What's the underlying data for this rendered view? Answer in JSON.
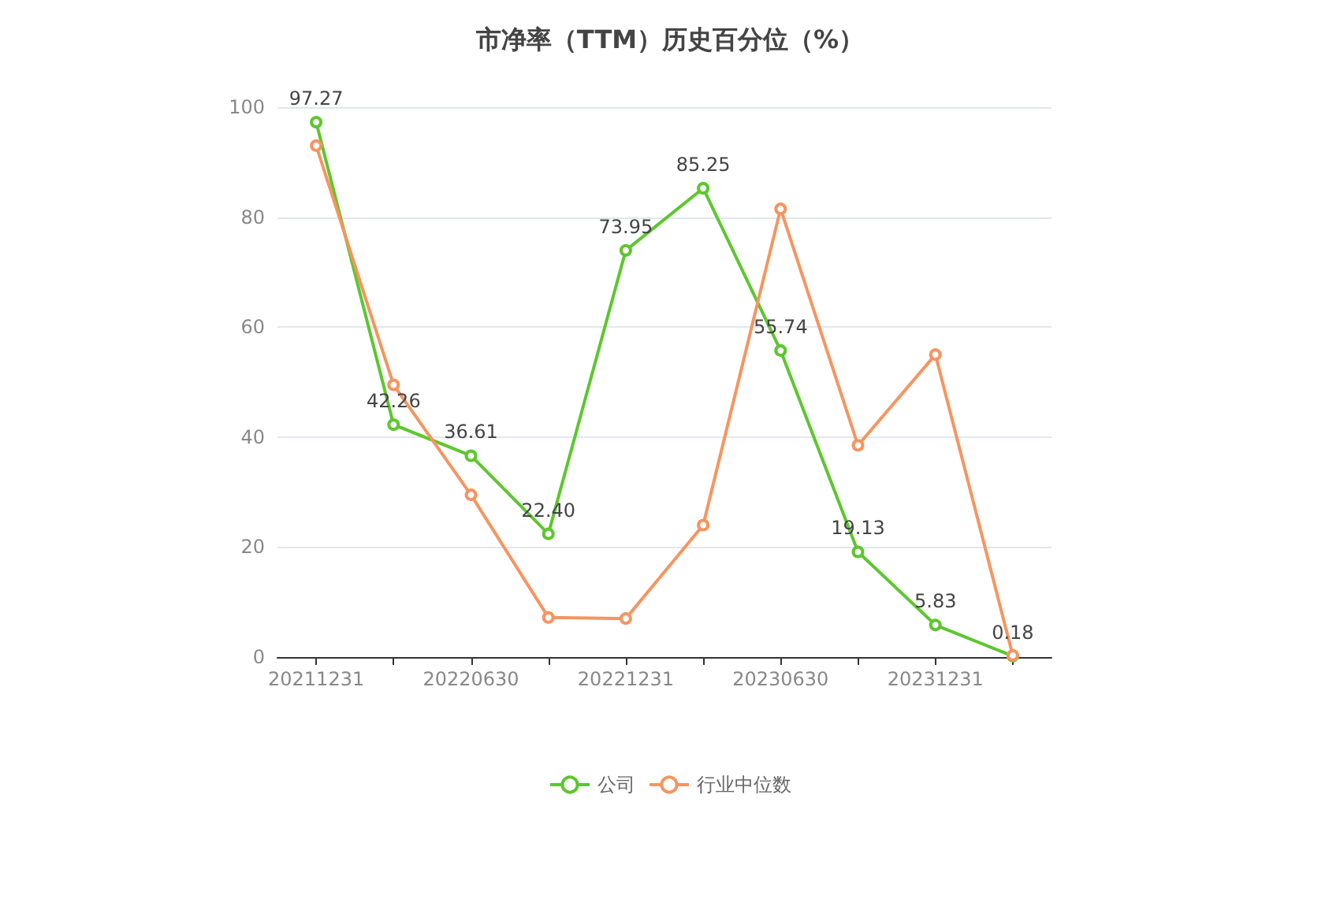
{
  "chart_data": {
    "type": "line",
    "title": "市净率（TTM）历史百分位（%）",
    "categories": [
      "20211231",
      null,
      "20220630",
      null,
      "20221231",
      null,
      "20230630",
      null,
      "20231231",
      null
    ],
    "series": [
      {
        "name": "公司",
        "color": "#5cc72d",
        "values": [
          97.27,
          42.26,
          36.61,
          22.4,
          73.95,
          85.25,
          55.74,
          19.13,
          5.83,
          0.18
        ],
        "value_labels": [
          "97.27",
          "42.26",
          "36.61",
          "22.40",
          "73.95",
          "85.25",
          "55.74",
          "19.13",
          "5.83",
          "0.18"
        ]
      },
      {
        "name": "行业中位数",
        "color": "#f7945f",
        "values": [
          93,
          49.5,
          29.5,
          7.2,
          7,
          24,
          81.5,
          38.5,
          55,
          0.3
        ]
      }
    ],
    "ylim": [
      0,
      100
    ],
    "yticks": [
      0,
      20,
      40,
      60,
      80,
      100
    ],
    "grid": "y",
    "legend": "bottom",
    "marker": "circle"
  }
}
